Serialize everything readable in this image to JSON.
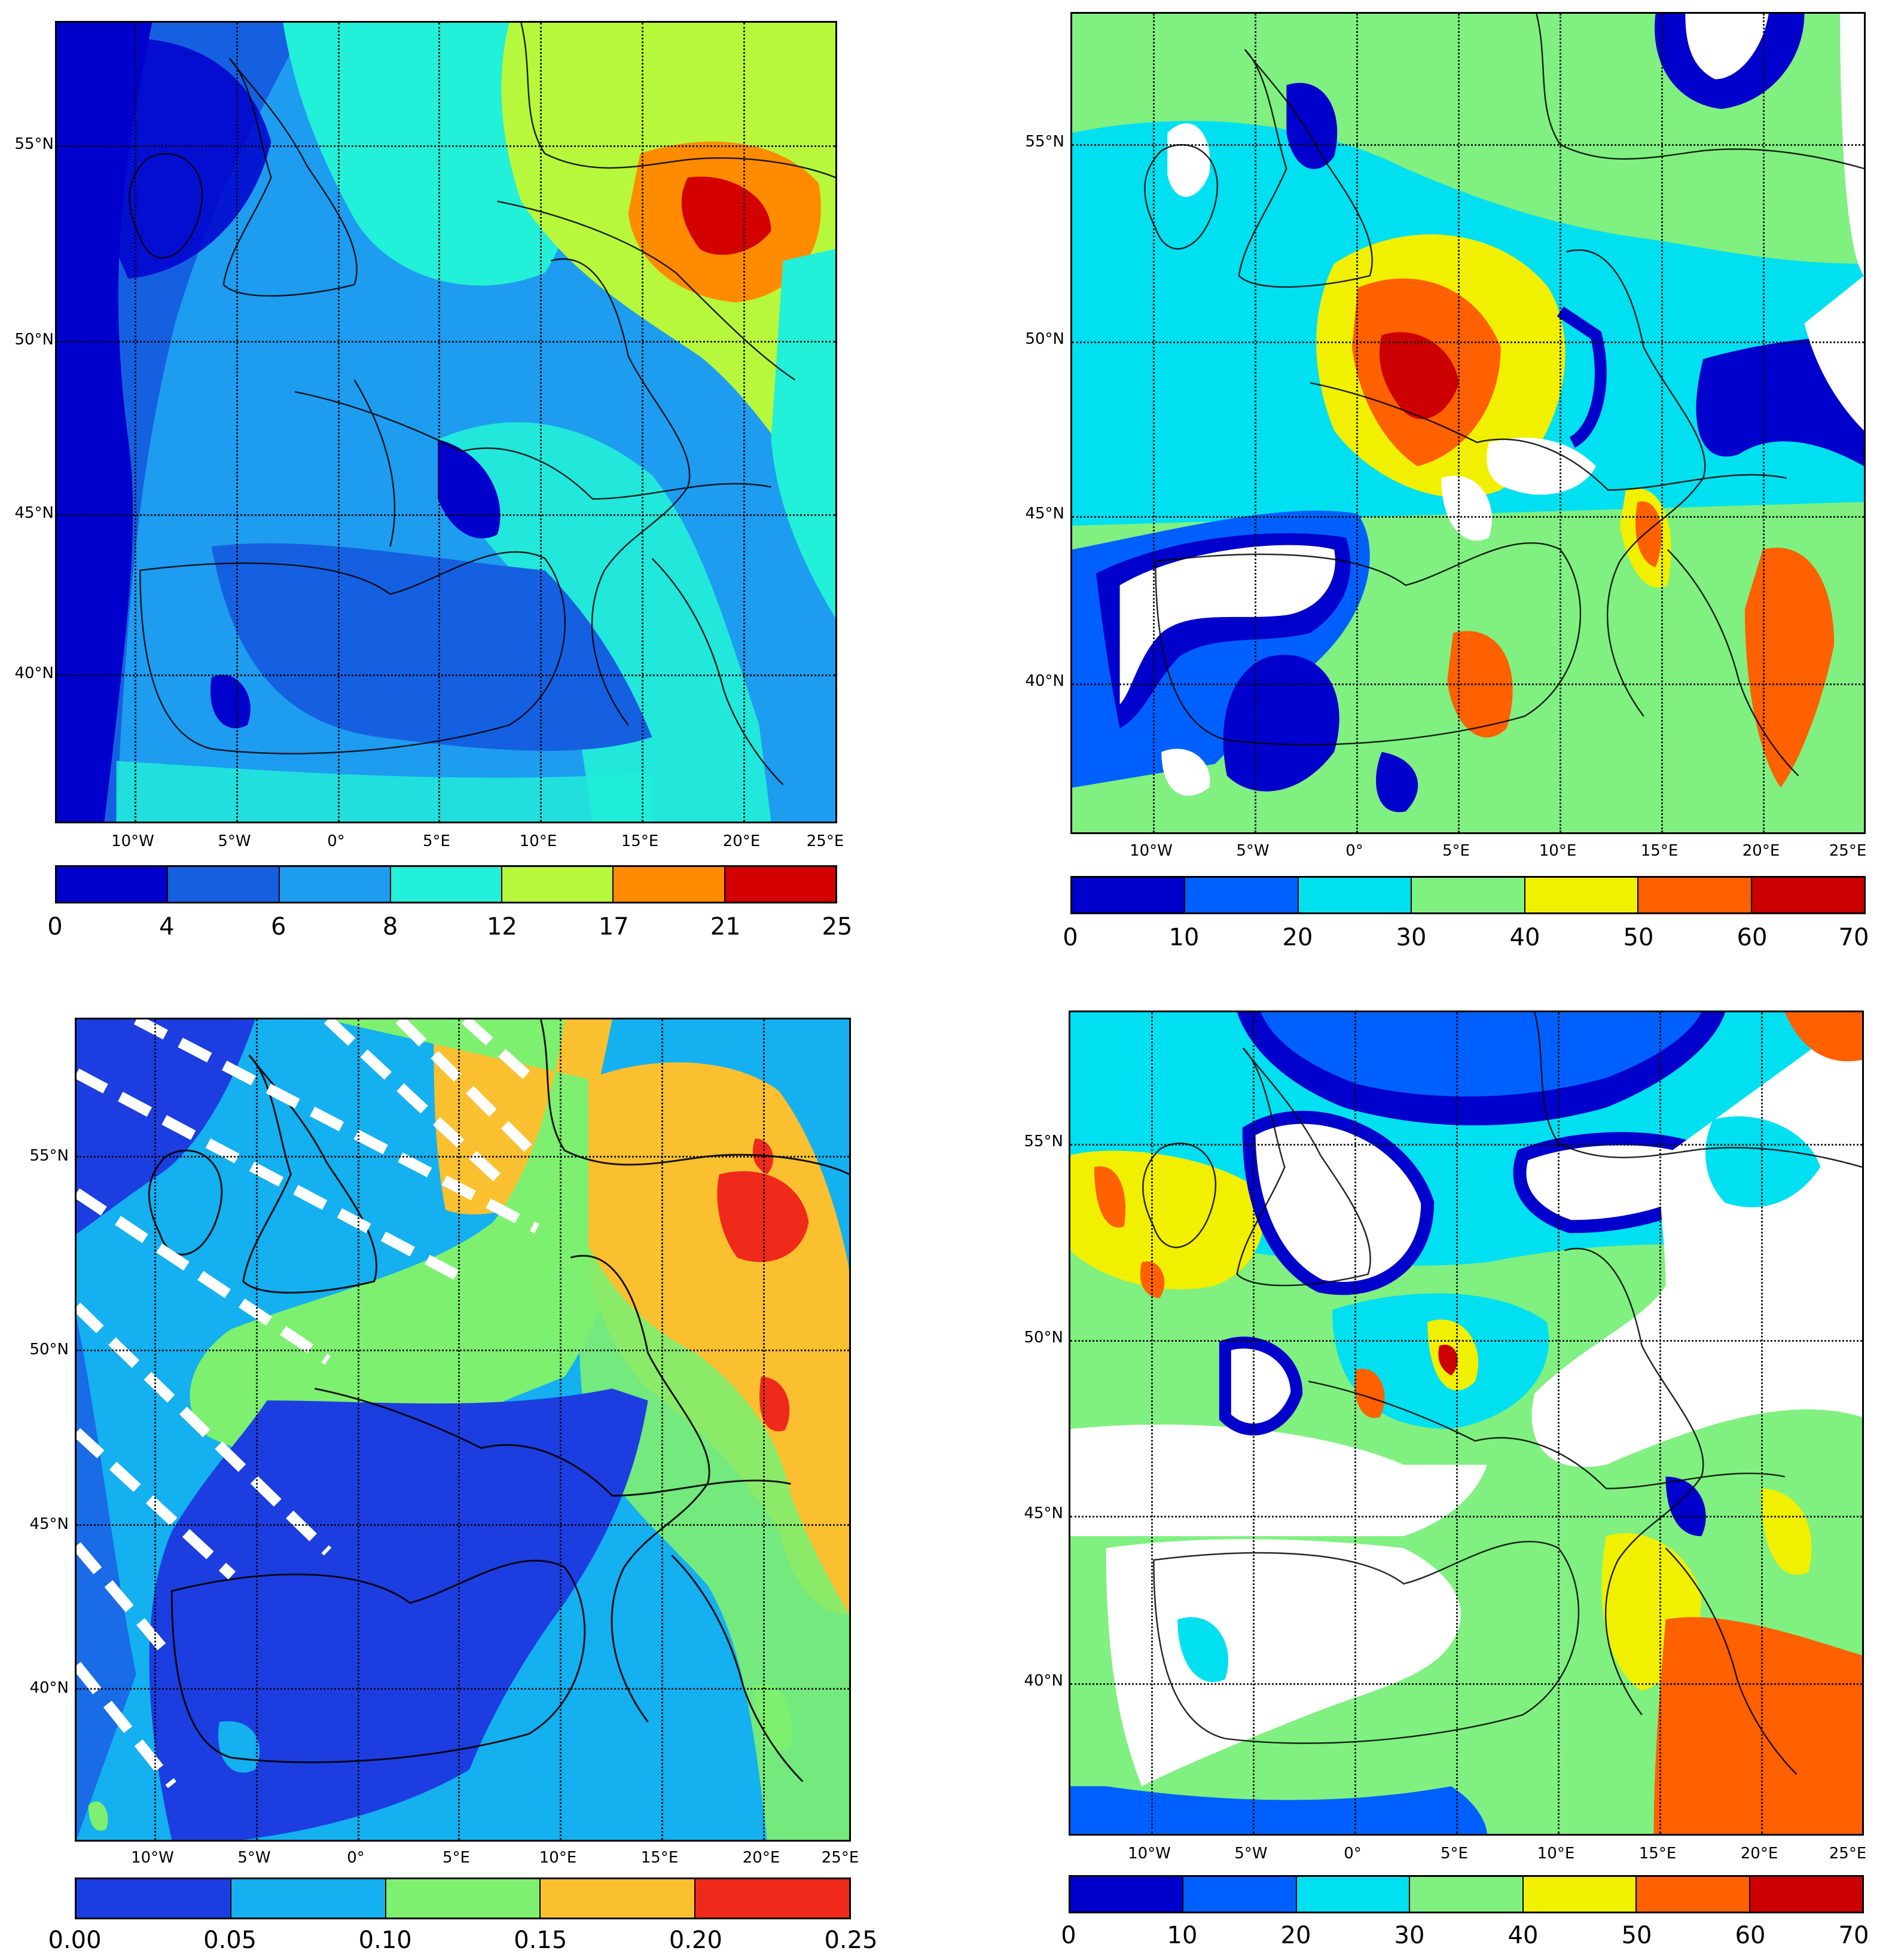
{
  "panels": [
    {
      "id": "top-left",
      "lat_labels": [
        "55°N",
        "50°N",
        "45°N",
        "40°N"
      ],
      "lon_labels": [
        "10°W",
        "5°W",
        "0°",
        "5°E",
        "10°E",
        "15°E",
        "20°E",
        "25°E"
      ],
      "colorbar": {
        "ticks": [
          "0",
          "4",
          "6",
          "8",
          "12",
          "17",
          "21",
          "25"
        ],
        "colors": [
          "#0000cc",
          "#1560e0",
          "#1e9cf0",
          "#22f0d8",
          "#b8f83c",
          "#ff8c00",
          "#d40000"
        ]
      }
    },
    {
      "id": "top-right",
      "lat_labels": [
        "55°N",
        "50°N",
        "45°N",
        "40°N"
      ],
      "lon_labels": [
        "10°W",
        "5°W",
        "0°",
        "5°E",
        "10°E",
        "15°E",
        "20°E",
        "25°E"
      ],
      "colorbar": {
        "ticks": [
          "0",
          "10",
          "20",
          "30",
          "40",
          "50",
          "60",
          "70"
        ],
        "colors": [
          "#0000cc",
          "#0060ff",
          "#00e0f0",
          "#80f080",
          "#f0f000",
          "#ff6000",
          "#cc0000"
        ]
      }
    },
    {
      "id": "bottom-left",
      "lat_labels": [
        "55°N",
        "50°N",
        "45°N",
        "40°N"
      ],
      "lon_labels": [
        "10°W",
        "5°W",
        "0°",
        "5°E",
        "10°E",
        "15°E",
        "20°E",
        "25°E"
      ],
      "colorbar": {
        "ticks": [
          "0.00",
          "0.05",
          "0.10",
          "0.15",
          "0.20",
          "0.25"
        ],
        "colors": [
          "#1c3ee0",
          "#14b0f0",
          "#7ef070",
          "#fbc030",
          "#f02a1a"
        ]
      }
    },
    {
      "id": "bottom-right",
      "lat_labels": [
        "55°N",
        "50°N",
        "45°N",
        "40°N"
      ],
      "lon_labels": [
        "10°W",
        "5°W",
        "0°",
        "5°E",
        "10°E",
        "15°E",
        "20°E",
        "25°E"
      ],
      "colorbar": {
        "ticks": [
          "0",
          "10",
          "20",
          "30",
          "40",
          "50",
          "60",
          "70"
        ],
        "colors": [
          "#0000cc",
          "#0060ff",
          "#00e0f0",
          "#80f080",
          "#f0f000",
          "#ff6000",
          "#cc0000"
        ]
      }
    }
  ]
}
